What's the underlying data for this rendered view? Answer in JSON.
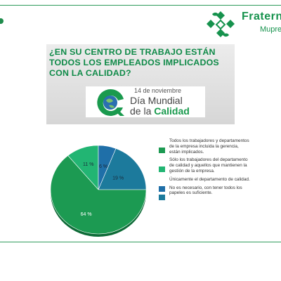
{
  "brand": {
    "name": "Fraterni",
    "subtitle": "Mupre"
  },
  "question": "¿EN SU CENTRO DE TRABAJO ESTÁN TODOS LOS EMPLEADOS IMPLICADOS CON LA CALIDAD?",
  "banner": {
    "date": "14 de noviembre",
    "title_line1": "Día Mundial",
    "title_line2_prefix": "de la ",
    "title_line2_accent": "Calidad"
  },
  "chart_data": {
    "type": "pie",
    "title": "",
    "slices": [
      {
        "label": "Todos los trabajadores y departamentos de la empresa incluida la gerencia, están implicados.",
        "value": 64,
        "value_label": "64 %",
        "color": "#1c9a52"
      },
      {
        "label": "Sólo los trabajadores del departamento de calidad y aquellos que mantienen la gestión de la empresa.",
        "value": 11,
        "value_label": "11 %",
        "color": "#22b573"
      },
      {
        "label": "Únicamente el departamento de calidad.",
        "value": 6,
        "value_label": "6 %",
        "color": "#1f6fa8"
      },
      {
        "label": "No es necesario, con tener todos los papeles es suficiente.",
        "value": 19,
        "value_label": "19 %",
        "color": "#1c7a9c"
      }
    ],
    "legend_position": "right"
  }
}
